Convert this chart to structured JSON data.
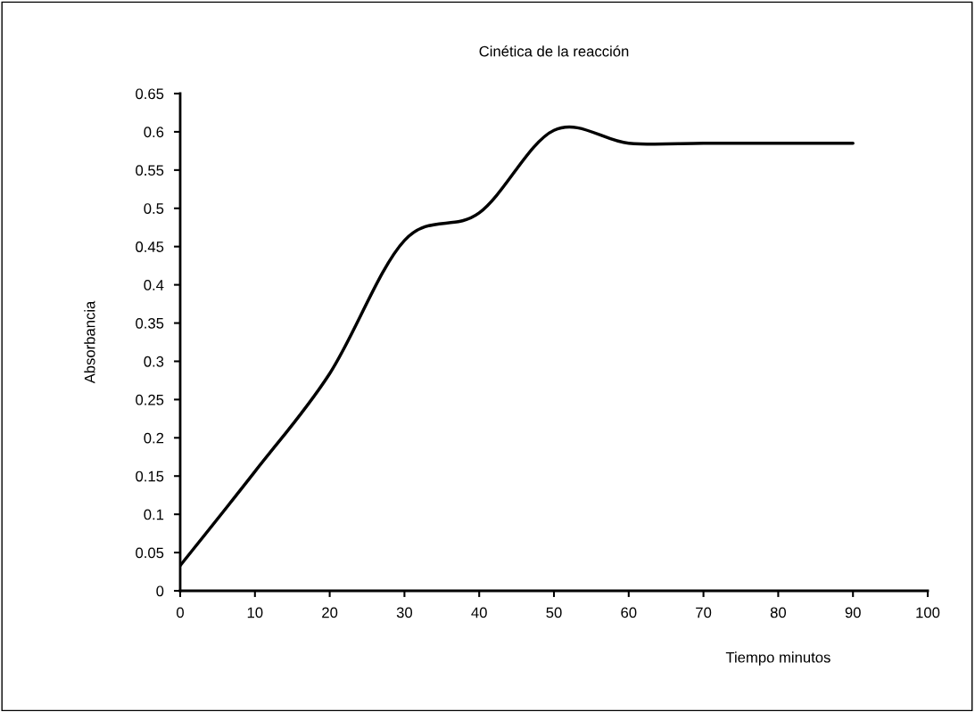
{
  "chart_data": {
    "type": "line",
    "title": "Cinética de la reacción",
    "xlabel": "Tiempo minutos",
    "ylabel": "Absorbancia",
    "x": [
      0,
      10,
      20,
      30,
      40,
      50,
      60,
      70,
      80,
      90
    ],
    "series": [
      {
        "color": "#000000",
        "values": [
          0.033,
          0.156,
          0.284,
          0.458,
          0.494,
          0.602,
          0.585,
          0.585,
          0.585,
          0.585
        ]
      }
    ],
    "xlim": [
      0,
      100
    ],
    "xticks": [
      0,
      10,
      20,
      30,
      40,
      50,
      60,
      70,
      80,
      90,
      100
    ],
    "ylim": [
      0,
      0.65
    ],
    "yticks": [
      0,
      0.05,
      0.1,
      0.15,
      0.2,
      0.25,
      0.3,
      0.35,
      0.4,
      0.45,
      0.5,
      0.55,
      0.6,
      0.65
    ],
    "grid": false,
    "legend": false,
    "marker": "none",
    "line_style": "solid"
  }
}
